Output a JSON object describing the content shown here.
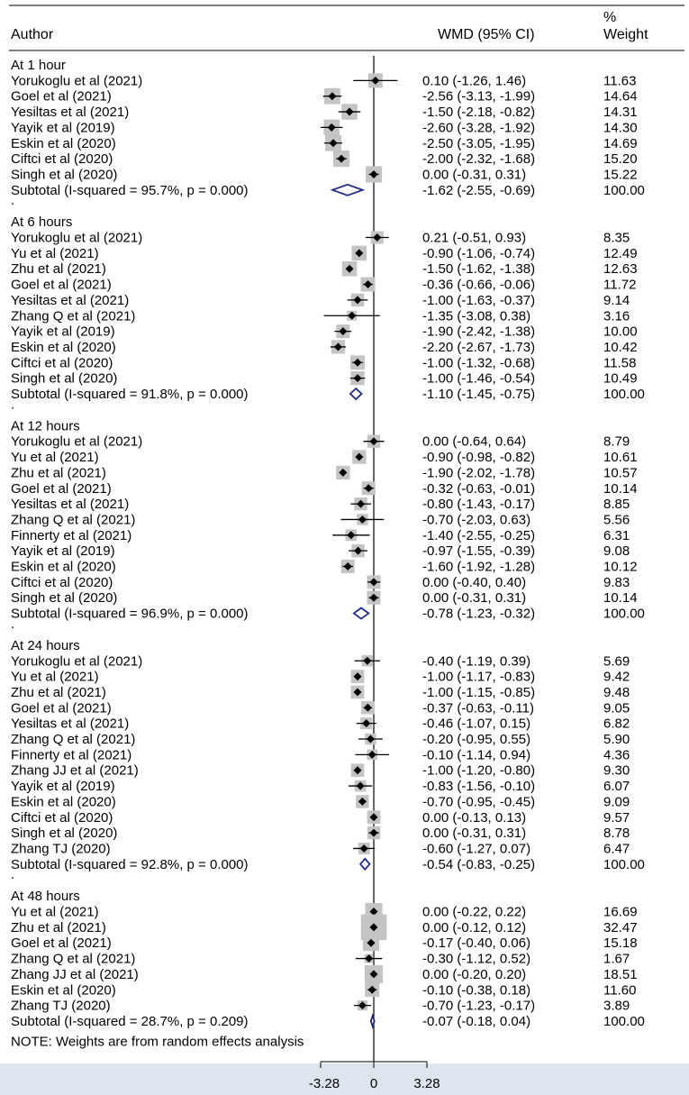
{
  "chart_data": {
    "type": "forest",
    "header": {
      "author": "Author",
      "effect": "WMD (95% CI)",
      "weight_pct": "%",
      "weight_word": "Weight"
    },
    "xlim": [
      -3.28,
      3.28
    ],
    "xticks": [
      "-3.28",
      "0",
      "3.28"
    ],
    "subtotal_color": "#1f2a8a",
    "groups": [
      {
        "label": "At 1 hour",
        "studies": [
          {
            "name": "Yorukoglu et al (2021)",
            "est": 0.1,
            "lo": -1.26,
            "hi": 1.46,
            "ci": "0.10 (-1.26, 1.46)",
            "weight": "11.63"
          },
          {
            "name": "Goel et al (2021)",
            "est": -2.56,
            "lo": -3.13,
            "hi": -1.99,
            "ci": "-2.56 (-3.13, -1.99)",
            "weight": "14.64"
          },
          {
            "name": "Yesiltas et al (2021)",
            "est": -1.5,
            "lo": -2.18,
            "hi": -0.82,
            "ci": "-1.50 (-2.18, -0.82)",
            "weight": "14.31"
          },
          {
            "name": "Yayik et al (2019)",
            "est": -2.6,
            "lo": -3.28,
            "hi": -1.92,
            "ci": "-2.60 (-3.28, -1.92)",
            "weight": "14.30"
          },
          {
            "name": "Eskin et al (2020)",
            "est": -2.5,
            "lo": -3.05,
            "hi": -1.95,
            "ci": "-2.50 (-3.05, -1.95)",
            "weight": "14.69"
          },
          {
            "name": "Ciftci et al (2020)",
            "est": -2.0,
            "lo": -2.32,
            "hi": -1.68,
            "ci": "-2.00 (-2.32, -1.68)",
            "weight": "15.20"
          },
          {
            "name": "Singh et al (2020)",
            "est": 0.0,
            "lo": -0.31,
            "hi": 0.31,
            "ci": "0.00 (-0.31, 0.31)",
            "weight": "15.22"
          }
        ],
        "subtotal": {
          "label": "Subtotal  (I-squared = 95.7%, p = 0.000)",
          "est": -1.62,
          "lo": -2.55,
          "hi": -0.69,
          "ci": "-1.62 (-2.55, -0.69)",
          "weight": "100.00"
        }
      },
      {
        "label": "At 6 hours",
        "studies": [
          {
            "name": "Yorukoglu et al (2021)",
            "est": 0.21,
            "lo": -0.51,
            "hi": 0.93,
            "ci": "0.21 (-0.51, 0.93)",
            "weight": "8.35"
          },
          {
            "name": "Yu et al (2021)",
            "est": -0.9,
            "lo": -1.06,
            "hi": -0.74,
            "ci": "-0.90 (-1.06, -0.74)",
            "weight": "12.49"
          },
          {
            "name": "Zhu et al (2021)",
            "est": -1.5,
            "lo": -1.62,
            "hi": -1.38,
            "ci": "-1.50 (-1.62, -1.38)",
            "weight": "12.63"
          },
          {
            "name": "Goel et al (2021)",
            "est": -0.36,
            "lo": -0.66,
            "hi": -0.06,
            "ci": "-0.36 (-0.66, -0.06)",
            "weight": "11.72"
          },
          {
            "name": "Yesiltas et al (2021)",
            "est": -1.0,
            "lo": -1.63,
            "hi": -0.37,
            "ci": "-1.00 (-1.63, -0.37)",
            "weight": "9.14"
          },
          {
            "name": "Zhang Q et al (2021)",
            "est": -1.35,
            "lo": -3.08,
            "hi": 0.38,
            "ci": "-1.35 (-3.08, 0.38)",
            "weight": "3.16"
          },
          {
            "name": "Yayik et al (2019)",
            "est": -1.9,
            "lo": -2.42,
            "hi": -1.38,
            "ci": "-1.90 (-2.42, -1.38)",
            "weight": "10.00"
          },
          {
            "name": "Eskin et al (2020)",
            "est": -2.2,
            "lo": -2.67,
            "hi": -1.73,
            "ci": "-2.20 (-2.67, -1.73)",
            "weight": "10.42"
          },
          {
            "name": "Ciftci et al (2020)",
            "est": -1.0,
            "lo": -1.32,
            "hi": -0.68,
            "ci": "-1.00 (-1.32, -0.68)",
            "weight": "11.58"
          },
          {
            "name": "Singh et al (2020)",
            "est": -1.0,
            "lo": -1.46,
            "hi": -0.54,
            "ci": "-1.00 (-1.46, -0.54)",
            "weight": "10.49"
          }
        ],
        "subtotal": {
          "label": "Subtotal  (I-squared = 91.8%, p = 0.000)",
          "est": -1.1,
          "lo": -1.45,
          "hi": -0.75,
          "ci": "-1.10 (-1.45, -0.75)",
          "weight": "100.00"
        }
      },
      {
        "label": "At 12 hours",
        "studies": [
          {
            "name": "Yorukoglu et al (2021)",
            "est": 0.0,
            "lo": -0.64,
            "hi": 0.64,
            "ci": "0.00 (-0.64, 0.64)",
            "weight": "8.79"
          },
          {
            "name": "Yu et al (2021)",
            "est": -0.9,
            "lo": -0.98,
            "hi": -0.82,
            "ci": "-0.90 (-0.98, -0.82)",
            "weight": "10.61"
          },
          {
            "name": "Zhu et al (2021)",
            "est": -1.9,
            "lo": -2.02,
            "hi": -1.78,
            "ci": "-1.90 (-2.02, -1.78)",
            "weight": "10.57"
          },
          {
            "name": "Goel et al (2021)",
            "est": -0.32,
            "lo": -0.63,
            "hi": -0.01,
            "ci": "-0.32 (-0.63, -0.01)",
            "weight": "10.14"
          },
          {
            "name": "Yesiltas et al (2021)",
            "est": -0.8,
            "lo": -1.43,
            "hi": -0.17,
            "ci": "-0.80 (-1.43, -0.17)",
            "weight": "8.85"
          },
          {
            "name": "Zhang Q et al (2021)",
            "est": -0.7,
            "lo": -2.03,
            "hi": 0.63,
            "ci": "-0.70 (-2.03, 0.63)",
            "weight": "5.56"
          },
          {
            "name": "Finnerty et al (2021)",
            "est": -1.4,
            "lo": -2.55,
            "hi": -0.25,
            "ci": "-1.40 (-2.55, -0.25)",
            "weight": "6.31"
          },
          {
            "name": "Yayik et al (2019)",
            "est": -0.97,
            "lo": -1.55,
            "hi": -0.39,
            "ci": "-0.97 (-1.55, -0.39)",
            "weight": "9.08"
          },
          {
            "name": "Eskin et al (2020)",
            "est": -1.6,
            "lo": -1.92,
            "hi": -1.28,
            "ci": "-1.60 (-1.92, -1.28)",
            "weight": "10.12"
          },
          {
            "name": "Ciftci et al (2020)",
            "est": 0.0,
            "lo": -0.4,
            "hi": 0.4,
            "ci": "0.00 (-0.40, 0.40)",
            "weight": "9.83"
          },
          {
            "name": "Singh et al (2020)",
            "est": 0.0,
            "lo": -0.31,
            "hi": 0.31,
            "ci": "0.00 (-0.31, 0.31)",
            "weight": "10.14"
          }
        ],
        "subtotal": {
          "label": "Subtotal  (I-squared = 96.9%, p = 0.000)",
          "est": -0.78,
          "lo": -1.23,
          "hi": -0.32,
          "ci": "-0.78 (-1.23, -0.32)",
          "weight": "100.00"
        }
      },
      {
        "label": "At 24 hours",
        "studies": [
          {
            "name": "Yorukoglu et al (2021)",
            "est": -0.4,
            "lo": -1.19,
            "hi": 0.39,
            "ci": "-0.40 (-1.19, 0.39)",
            "weight": "5.69"
          },
          {
            "name": "Yu et al (2021)",
            "est": -1.0,
            "lo": -1.17,
            "hi": -0.83,
            "ci": "-1.00 (-1.17, -0.83)",
            "weight": "9.42"
          },
          {
            "name": "Zhu et al (2021)",
            "est": -1.0,
            "lo": -1.15,
            "hi": -0.85,
            "ci": "-1.00 (-1.15, -0.85)",
            "weight": "9.48"
          },
          {
            "name": "Goel et al (2021)",
            "est": -0.37,
            "lo": -0.63,
            "hi": -0.11,
            "ci": "-0.37 (-0.63, -0.11)",
            "weight": "9.05"
          },
          {
            "name": "Yesiltas et al (2021)",
            "est": -0.46,
            "lo": -1.07,
            "hi": 0.15,
            "ci": "-0.46 (-1.07, 0.15)",
            "weight": "6.82"
          },
          {
            "name": "Zhang Q et al (2021)",
            "est": -0.2,
            "lo": -0.95,
            "hi": 0.55,
            "ci": "-0.20 (-0.95, 0.55)",
            "weight": "5.90"
          },
          {
            "name": "Finnerty et al (2021)",
            "est": -0.1,
            "lo": -1.14,
            "hi": 0.94,
            "ci": "-0.10 (-1.14, 0.94)",
            "weight": "4.36"
          },
          {
            "name": "Zhang JJ et al (2021)",
            "est": -1.0,
            "lo": -1.2,
            "hi": -0.8,
            "ci": "-1.00 (-1.20, -0.80)",
            "weight": "9.30"
          },
          {
            "name": "Yayik et al (2019)",
            "est": -0.83,
            "lo": -1.56,
            "hi": -0.1,
            "ci": "-0.83 (-1.56, -0.10)",
            "weight": "6.07"
          },
          {
            "name": "Eskin et al (2020)",
            "est": -0.7,
            "lo": -0.95,
            "hi": -0.45,
            "ci": "-0.70 (-0.95, -0.45)",
            "weight": "9.09"
          },
          {
            "name": "Ciftci et al (2020)",
            "est": 0.0,
            "lo": -0.13,
            "hi": 0.13,
            "ci": "0.00 (-0.13, 0.13)",
            "weight": "9.57"
          },
          {
            "name": "Singh et al (2020)",
            "est": 0.0,
            "lo": -0.31,
            "hi": 0.31,
            "ci": "0.00 (-0.31, 0.31)",
            "weight": "8.78"
          },
          {
            "name": "Zhang TJ (2020)",
            "est": -0.6,
            "lo": -1.27,
            "hi": 0.07,
            "ci": "-0.60 (-1.27, 0.07)",
            "weight": "6.47"
          }
        ],
        "subtotal": {
          "label": "Subtotal  (I-squared = 92.8%, p = 0.000)",
          "est": -0.54,
          "lo": -0.83,
          "hi": -0.25,
          "ci": "-0.54 (-0.83, -0.25)",
          "weight": "100.00"
        }
      },
      {
        "label": "At 48 hours",
        "studies": [
          {
            "name": "Yu et al (2021)",
            "est": 0.0,
            "lo": -0.22,
            "hi": 0.22,
            "ci": "0.00 (-0.22, 0.22)",
            "weight": "16.69"
          },
          {
            "name": "Zhu et al (2021)",
            "est": 0.0,
            "lo": -0.12,
            "hi": 0.12,
            "ci": "0.00 (-0.12, 0.12)",
            "weight": "32.47"
          },
          {
            "name": "Goel et al (2021)",
            "est": -0.17,
            "lo": -0.4,
            "hi": 0.06,
            "ci": "-0.17 (-0.40, 0.06)",
            "weight": "15.18"
          },
          {
            "name": "Zhang Q et al (2021)",
            "est": -0.3,
            "lo": -1.12,
            "hi": 0.52,
            "ci": "-0.30 (-1.12, 0.52)",
            "weight": "1.67"
          },
          {
            "name": "Zhang JJ et al (2021)",
            "est": 0.0,
            "lo": -0.2,
            "hi": 0.2,
            "ci": "0.00 (-0.20, 0.20)",
            "weight": "18.51"
          },
          {
            "name": "Eskin et al (2020)",
            "est": -0.1,
            "lo": -0.38,
            "hi": 0.18,
            "ci": "-0.10 (-0.38, 0.18)",
            "weight": "11.60"
          },
          {
            "name": "Zhang TJ (2020)",
            "est": -0.7,
            "lo": -1.23,
            "hi": -0.17,
            "ci": "-0.70 (-1.23, -0.17)",
            "weight": "3.89"
          }
        ],
        "subtotal": {
          "label": "Subtotal  (I-squared = 28.7%, p = 0.209)",
          "est": -0.07,
          "lo": -0.18,
          "hi": 0.04,
          "ci": "-0.07 (-0.18, 0.04)",
          "weight": "100.00"
        }
      }
    ],
    "note": "NOTE: Weights are from random effects analysis"
  }
}
